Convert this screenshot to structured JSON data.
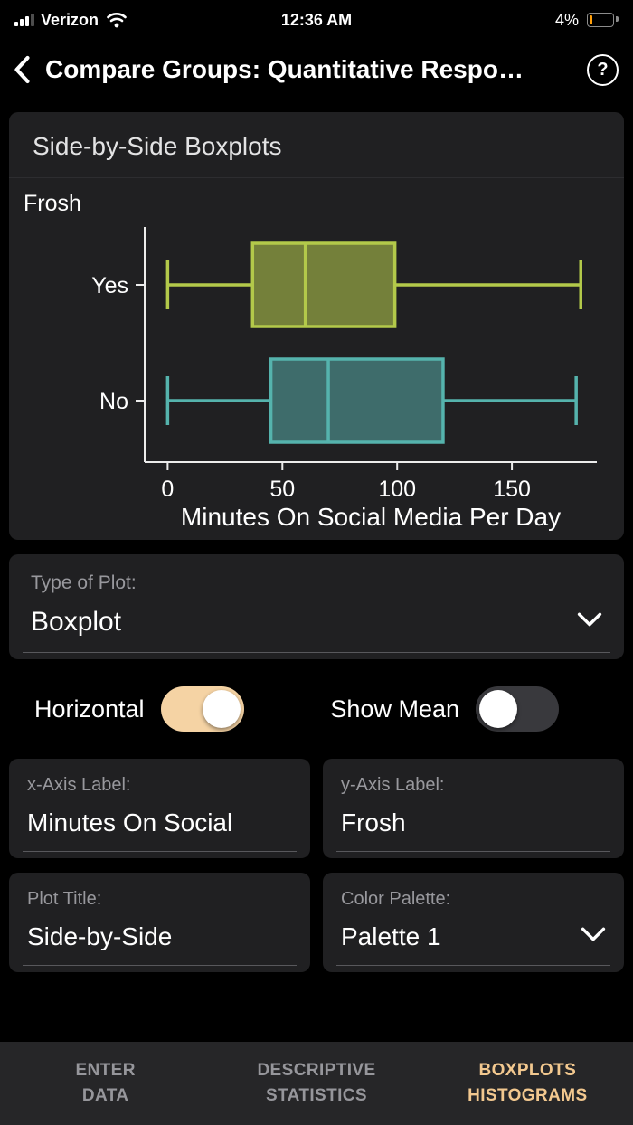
{
  "status_bar": {
    "carrier": "Verizon",
    "time": "12:36 AM",
    "battery_percent": "4%"
  },
  "nav": {
    "title": "Compare Groups: Quantitative Respo…"
  },
  "icons": {
    "help": "?"
  },
  "colors": {
    "accent": "#f2c88f",
    "toggle_on": "#f5d3a4",
    "battery_color": "#ff9f0a"
  },
  "chart_card": {
    "title": "Side-by-Side Boxplots"
  },
  "chart_data": {
    "type": "boxplot",
    "orientation": "horizontal",
    "title": "Side-by-Side Boxplots",
    "xlabel": "Minutes On Social Media Per Day",
    "ylabel": "Frosh",
    "categories": [
      "Yes",
      "No"
    ],
    "xlim": [
      -10,
      187
    ],
    "xticks": [
      0,
      50,
      100,
      150
    ],
    "axis_color": "#ececec",
    "text_color": "#ffffff",
    "series": [
      {
        "name": "Yes",
        "min": 0,
        "q1": 37,
        "median": 60,
        "q3": 99,
        "max": 180,
        "stroke": "#b3c94a",
        "fill": "#74803a"
      },
      {
        "name": "No",
        "min": 0,
        "q1": 45,
        "median": 70,
        "q3": 120,
        "max": 178,
        "stroke": "#55b3ad",
        "fill": "#3e6c6b"
      }
    ]
  },
  "controls": {
    "type_of_plot": {
      "label": "Type of Plot:",
      "value": "Boxplot"
    },
    "horizontal": {
      "label": "Horizontal",
      "on": true
    },
    "show_mean": {
      "label": "Show Mean",
      "on": false
    },
    "x_axis": {
      "label": "x-Axis Label:",
      "value": "Minutes On Social"
    },
    "y_axis": {
      "label": "y-Axis Label:",
      "value": "Frosh"
    },
    "plot_title": {
      "label": "Plot Title:",
      "value": "Side-by-Side"
    },
    "color_palette": {
      "label": "Color Palette:",
      "value": "Palette 1"
    }
  },
  "tab_bar": {
    "items": [
      {
        "line1": "ENTER",
        "line2": "DATA",
        "active": false
      },
      {
        "line1": "DESCRIPTIVE",
        "line2": "STATISTICS",
        "active": false
      },
      {
        "line1": "BOXPLOTS",
        "line2": "HISTOGRAMS",
        "active": true
      }
    ]
  }
}
